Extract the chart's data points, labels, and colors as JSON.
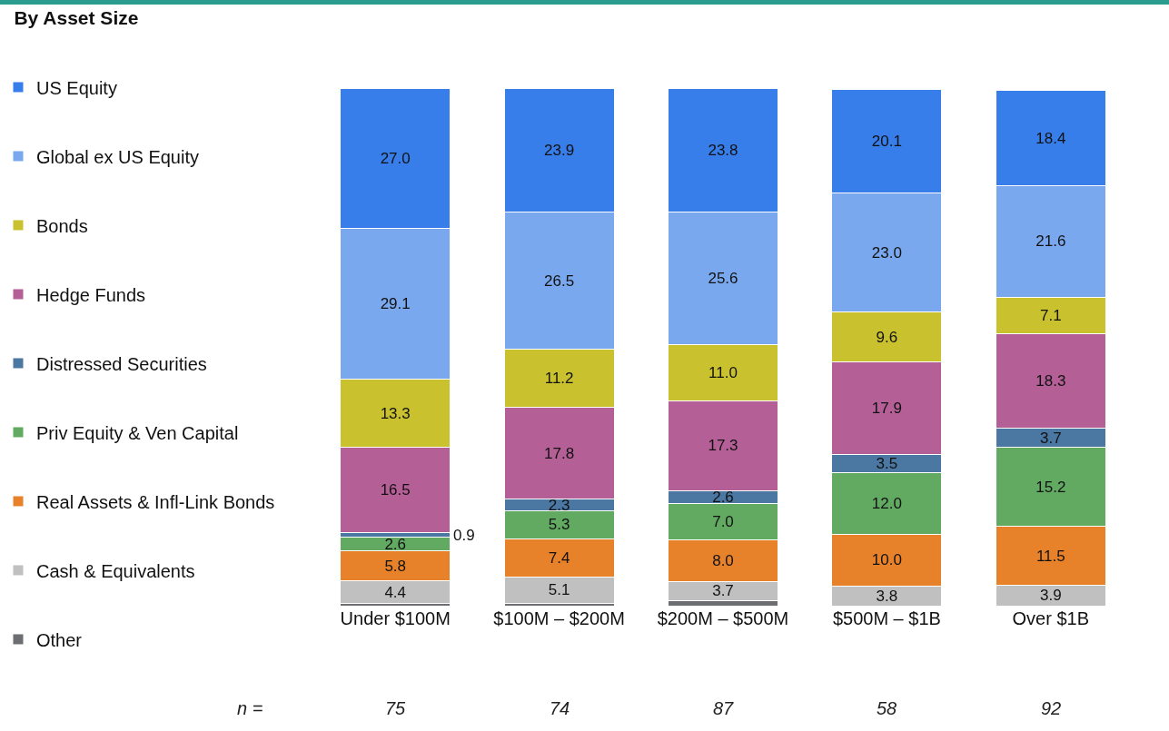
{
  "chart_data": {
    "type": "bar",
    "title": "By Asset Size",
    "stacked": true,
    "legend": "left",
    "grid": false,
    "tick_labels": "x",
    "categories": [
      "Under $100M",
      "$100M – $200M",
      "$200M – $500M",
      "$500M – $1B",
      "Over $1B"
    ],
    "series": [
      {
        "name": "Other",
        "color": "#6d6e72",
        "values": [
          0.4,
          0.5,
          1.0,
          null,
          null
        ],
        "value_labels": [
          null,
          null,
          null,
          null,
          null
        ]
      },
      {
        "name": "Cash & Equivalents",
        "color": "#c0c0c0",
        "values": [
          4.4,
          5.1,
          3.7,
          3.8,
          3.9
        ],
        "value_labels": [
          "4.4",
          "5.1",
          "3.7",
          "3.8",
          "3.9"
        ]
      },
      {
        "name": "Real Assets & Infl-Link Bonds",
        "color": "#e8822a",
        "values": [
          5.8,
          7.4,
          8.0,
          10.0,
          11.5
        ],
        "value_labels": [
          "5.8",
          "7.4",
          "8.0",
          "10.0",
          "11.5"
        ]
      },
      {
        "name": "Priv Equity & Ven Capital",
        "color": "#62aa62",
        "values": [
          2.6,
          5.3,
          7.0,
          12.0,
          15.2
        ],
        "value_labels": [
          "2.6",
          "5.3",
          "7.0",
          "12.0",
          "15.2"
        ]
      },
      {
        "name": "Distressed Securities",
        "color": "#4b77a3",
        "values": [
          0.9,
          2.3,
          2.6,
          3.5,
          3.7
        ],
        "value_labels": [
          "0.9",
          "2.3",
          "2.6",
          "3.5",
          "3.7"
        ]
      },
      {
        "name": "Hedge Funds",
        "color": "#b45f96",
        "values": [
          16.5,
          17.8,
          17.3,
          17.9,
          18.3
        ],
        "value_labels": [
          "16.5",
          "17.8",
          "17.3",
          "17.9",
          "18.3"
        ]
      },
      {
        "name": "Bonds",
        "color": "#c9c22e",
        "values": [
          13.3,
          11.2,
          11.0,
          9.6,
          7.1
        ],
        "value_labels": [
          "13.3",
          "11.2",
          "11.0",
          "9.6",
          "7.1"
        ]
      },
      {
        "name": "Global ex US Equity",
        "color": "#7aa8ef",
        "values": [
          29.1,
          26.5,
          25.6,
          23.0,
          21.6
        ],
        "value_labels": [
          "29.1",
          "26.5",
          "25.6",
          "23.0",
          "21.6"
        ]
      },
      {
        "name": "US Equity",
        "color": "#377eea",
        "values": [
          27.0,
          23.9,
          23.8,
          20.1,
          18.4
        ],
        "value_labels": [
          "27.0",
          "23.9",
          "23.8",
          "20.1",
          "18.4"
        ]
      }
    ],
    "annotations": [
      "n =",
      "75",
      "74",
      "87",
      "58",
      "92"
    ]
  }
}
